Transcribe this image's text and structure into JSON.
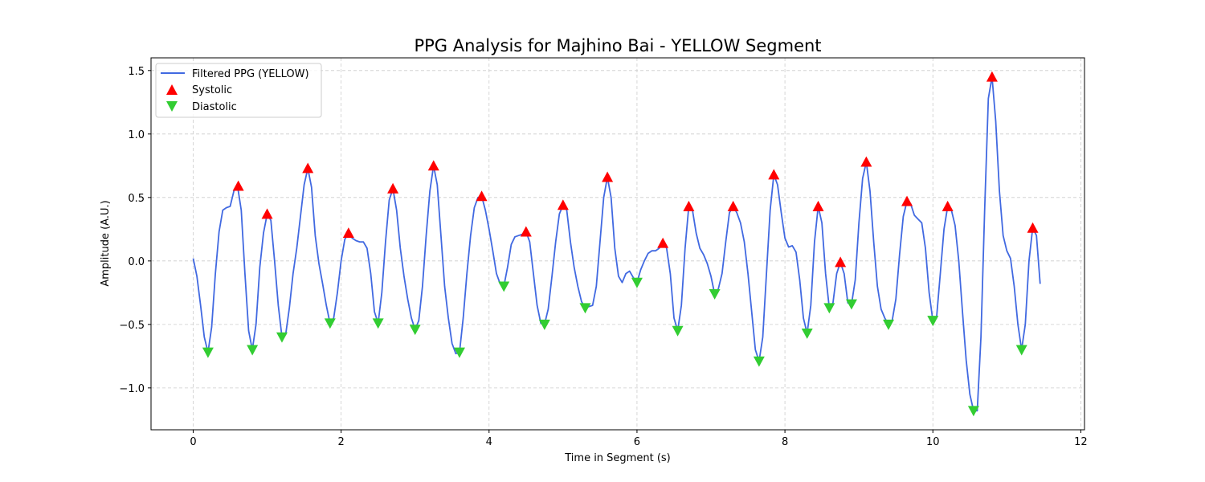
{
  "chart_data": {
    "type": "line",
    "title": "PPG Analysis for Majhino Bai - YELLOW Segment",
    "xlabel": "Time in Segment (s)",
    "ylabel": "Amplitude (A.U.)",
    "xlim": [
      -0.57,
      12.05
    ],
    "ylim": [
      -1.33,
      1.6
    ],
    "xticks": [
      0,
      2,
      4,
      6,
      8,
      10,
      12
    ],
    "yticks": [
      -1.0,
      -0.5,
      0.0,
      0.5,
      1.0,
      1.5
    ],
    "xtick_labels": [
      "0",
      "2",
      "4",
      "6",
      "8",
      "10",
      "12"
    ],
    "ytick_labels": [
      "−1.0",
      "−0.5",
      "0.0",
      "0.5",
      "1.0",
      "1.5"
    ],
    "grid": true,
    "legend_position": "top-left",
    "colors": {
      "line": "#4169e1",
      "systolic": "#ff0000",
      "diastolic": "#32cd32",
      "grid": "#cccccc"
    },
    "series": [
      {
        "name": "Filtered PPG (YELLOW)",
        "kind": "line",
        "points": [
          [
            0.0,
            0.02
          ],
          [
            0.05,
            -0.12
          ],
          [
            0.1,
            -0.35
          ],
          [
            0.15,
            -0.6
          ],
          [
            0.2,
            -0.72
          ],
          [
            0.25,
            -0.52
          ],
          [
            0.3,
            -0.1
          ],
          [
            0.35,
            0.23
          ],
          [
            0.4,
            0.4
          ],
          [
            0.45,
            0.42
          ],
          [
            0.5,
            0.43
          ],
          [
            0.55,
            0.55
          ],
          [
            0.6,
            0.59
          ],
          [
            0.65,
            0.4
          ],
          [
            0.7,
            -0.1
          ],
          [
            0.75,
            -0.55
          ],
          [
            0.8,
            -0.7
          ],
          [
            0.85,
            -0.5
          ],
          [
            0.9,
            -0.05
          ],
          [
            0.95,
            0.22
          ],
          [
            1.0,
            0.37
          ],
          [
            1.05,
            0.32
          ],
          [
            1.1,
            0.0
          ],
          [
            1.15,
            -0.35
          ],
          [
            1.2,
            -0.6
          ],
          [
            1.25,
            -0.58
          ],
          [
            1.3,
            -0.37
          ],
          [
            1.35,
            -0.1
          ],
          [
            1.4,
            0.1
          ],
          [
            1.45,
            0.35
          ],
          [
            1.5,
            0.6
          ],
          [
            1.55,
            0.73
          ],
          [
            1.6,
            0.58
          ],
          [
            1.65,
            0.2
          ],
          [
            1.7,
            -0.02
          ],
          [
            1.75,
            -0.18
          ],
          [
            1.8,
            -0.35
          ],
          [
            1.85,
            -0.49
          ],
          [
            1.9,
            -0.45
          ],
          [
            1.95,
            -0.25
          ],
          [
            2.0,
            0.0
          ],
          [
            2.05,
            0.17
          ],
          [
            2.1,
            0.22
          ],
          [
            2.15,
            0.18
          ],
          [
            2.2,
            0.16
          ],
          [
            2.25,
            0.15
          ],
          [
            2.3,
            0.15
          ],
          [
            2.35,
            0.1
          ],
          [
            2.4,
            -0.1
          ],
          [
            2.45,
            -0.4
          ],
          [
            2.5,
            -0.49
          ],
          [
            2.55,
            -0.25
          ],
          [
            2.6,
            0.15
          ],
          [
            2.65,
            0.48
          ],
          [
            2.7,
            0.57
          ],
          [
            2.75,
            0.4
          ],
          [
            2.8,
            0.1
          ],
          [
            2.85,
            -0.12
          ],
          [
            2.9,
            -0.3
          ],
          [
            2.95,
            -0.45
          ],
          [
            3.0,
            -0.54
          ],
          [
            3.05,
            -0.47
          ],
          [
            3.1,
            -0.2
          ],
          [
            3.15,
            0.2
          ],
          [
            3.2,
            0.55
          ],
          [
            3.25,
            0.75
          ],
          [
            3.3,
            0.6
          ],
          [
            3.35,
            0.2
          ],
          [
            3.4,
            -0.2
          ],
          [
            3.45,
            -0.45
          ],
          [
            3.5,
            -0.65
          ],
          [
            3.55,
            -0.73
          ],
          [
            3.6,
            -0.72
          ],
          [
            3.65,
            -0.45
          ],
          [
            3.7,
            -0.1
          ],
          [
            3.75,
            0.2
          ],
          [
            3.8,
            0.42
          ],
          [
            3.85,
            0.5
          ],
          [
            3.9,
            0.51
          ],
          [
            3.95,
            0.4
          ],
          [
            4.0,
            0.25
          ],
          [
            4.05,
            0.08
          ],
          [
            4.1,
            -0.1
          ],
          [
            4.15,
            -0.18
          ],
          [
            4.2,
            -0.2
          ],
          [
            4.25,
            -0.05
          ],
          [
            4.3,
            0.13
          ],
          [
            4.35,
            0.19
          ],
          [
            4.4,
            0.2
          ],
          [
            4.45,
            0.21
          ],
          [
            4.5,
            0.23
          ],
          [
            4.55,
            0.15
          ],
          [
            4.6,
            -0.1
          ],
          [
            4.65,
            -0.35
          ],
          [
            4.7,
            -0.49
          ],
          [
            4.75,
            -0.5
          ],
          [
            4.8,
            -0.38
          ],
          [
            4.85,
            -0.12
          ],
          [
            4.9,
            0.15
          ],
          [
            4.95,
            0.37
          ],
          [
            5.0,
            0.44
          ],
          [
            5.05,
            0.4
          ],
          [
            5.1,
            0.15
          ],
          [
            5.15,
            -0.05
          ],
          [
            5.2,
            -0.2
          ],
          [
            5.25,
            -0.32
          ],
          [
            5.3,
            -0.37
          ],
          [
            5.35,
            -0.36
          ],
          [
            5.4,
            -0.35
          ],
          [
            5.45,
            -0.2
          ],
          [
            5.5,
            0.15
          ],
          [
            5.55,
            0.5
          ],
          [
            5.6,
            0.66
          ],
          [
            5.65,
            0.5
          ],
          [
            5.7,
            0.1
          ],
          [
            5.75,
            -0.12
          ],
          [
            5.8,
            -0.17
          ],
          [
            5.85,
            -0.1
          ],
          [
            5.9,
            -0.08
          ],
          [
            5.95,
            -0.13
          ],
          [
            6.0,
            -0.17
          ],
          [
            6.05,
            -0.07
          ],
          [
            6.1,
            0.0
          ],
          [
            6.15,
            0.06
          ],
          [
            6.2,
            0.08
          ],
          [
            6.25,
            0.08
          ],
          [
            6.3,
            0.1
          ],
          [
            6.35,
            0.14
          ],
          [
            6.4,
            0.1
          ],
          [
            6.45,
            -0.1
          ],
          [
            6.5,
            -0.45
          ],
          [
            6.55,
            -0.55
          ],
          [
            6.6,
            -0.35
          ],
          [
            6.65,
            0.1
          ],
          [
            6.7,
            0.43
          ],
          [
            6.75,
            0.4
          ],
          [
            6.8,
            0.22
          ],
          [
            6.85,
            0.1
          ],
          [
            6.9,
            0.05
          ],
          [
            6.95,
            -0.02
          ],
          [
            7.0,
            -0.12
          ],
          [
            7.05,
            -0.26
          ],
          [
            7.1,
            -0.22
          ],
          [
            7.15,
            -0.1
          ],
          [
            7.2,
            0.15
          ],
          [
            7.25,
            0.38
          ],
          [
            7.3,
            0.43
          ],
          [
            7.35,
            0.38
          ],
          [
            7.4,
            0.3
          ],
          [
            7.45,
            0.15
          ],
          [
            7.5,
            -0.1
          ],
          [
            7.55,
            -0.4
          ],
          [
            7.6,
            -0.7
          ],
          [
            7.65,
            -0.79
          ],
          [
            7.7,
            -0.6
          ],
          [
            7.75,
            -0.1
          ],
          [
            7.8,
            0.4
          ],
          [
            7.85,
            0.68
          ],
          [
            7.9,
            0.6
          ],
          [
            7.95,
            0.38
          ],
          [
            8.0,
            0.18
          ],
          [
            8.05,
            0.11
          ],
          [
            8.1,
            0.12
          ],
          [
            8.15,
            0.07
          ],
          [
            8.2,
            -0.15
          ],
          [
            8.25,
            -0.45
          ],
          [
            8.3,
            -0.57
          ],
          [
            8.35,
            -0.35
          ],
          [
            8.4,
            0.15
          ],
          [
            8.45,
            0.43
          ],
          [
            8.5,
            0.3
          ],
          [
            8.55,
            -0.1
          ],
          [
            8.6,
            -0.37
          ],
          [
            8.65,
            -0.33
          ],
          [
            8.7,
            -0.1
          ],
          [
            8.75,
            -0.01
          ],
          [
            8.8,
            -0.1
          ],
          [
            8.85,
            -0.33
          ],
          [
            8.9,
            -0.34
          ],
          [
            8.95,
            -0.15
          ],
          [
            9.0,
            0.3
          ],
          [
            9.05,
            0.65
          ],
          [
            9.1,
            0.78
          ],
          [
            9.15,
            0.55
          ],
          [
            9.2,
            0.15
          ],
          [
            9.25,
            -0.2
          ],
          [
            9.3,
            -0.38
          ],
          [
            9.35,
            -0.45
          ],
          [
            9.4,
            -0.5
          ],
          [
            9.45,
            -0.47
          ],
          [
            9.5,
            -0.3
          ],
          [
            9.55,
            0.05
          ],
          [
            9.6,
            0.35
          ],
          [
            9.65,
            0.47
          ],
          [
            9.7,
            0.45
          ],
          [
            9.75,
            0.36
          ],
          [
            9.8,
            0.33
          ],
          [
            9.85,
            0.3
          ],
          [
            9.9,
            0.1
          ],
          [
            9.95,
            -0.25
          ],
          [
            10.0,
            -0.47
          ],
          [
            10.05,
            -0.45
          ],
          [
            10.1,
            -0.1
          ],
          [
            10.15,
            0.25
          ],
          [
            10.2,
            0.43
          ],
          [
            10.25,
            0.4
          ],
          [
            10.3,
            0.28
          ],
          [
            10.35,
            0.0
          ],
          [
            10.4,
            -0.4
          ],
          [
            10.45,
            -0.78
          ],
          [
            10.5,
            -1.05
          ],
          [
            10.55,
            -1.18
          ],
          [
            10.6,
            -1.18
          ],
          [
            10.65,
            -0.6
          ],
          [
            10.7,
            0.4
          ],
          [
            10.75,
            1.28
          ],
          [
            10.8,
            1.45
          ],
          [
            10.85,
            1.1
          ],
          [
            10.9,
            0.55
          ],
          [
            10.95,
            0.2
          ],
          [
            11.0,
            0.08
          ],
          [
            11.05,
            0.02
          ],
          [
            11.1,
            -0.2
          ],
          [
            11.15,
            -0.5
          ],
          [
            11.2,
            -0.7
          ],
          [
            11.25,
            -0.5
          ],
          [
            11.3,
            0.0
          ],
          [
            11.35,
            0.26
          ],
          [
            11.4,
            0.2
          ],
          [
            11.45,
            -0.18
          ]
        ]
      },
      {
        "name": "Systolic",
        "kind": "marker-up",
        "points": [
          [
            0.61,
            0.59
          ],
          [
            1.0,
            0.37
          ],
          [
            1.55,
            0.73
          ],
          [
            2.1,
            0.22
          ],
          [
            2.7,
            0.57
          ],
          [
            3.25,
            0.75
          ],
          [
            3.9,
            0.51
          ],
          [
            4.5,
            0.23
          ],
          [
            5.0,
            0.44
          ],
          [
            5.6,
            0.66
          ],
          [
            6.35,
            0.14
          ],
          [
            6.7,
            0.43
          ],
          [
            7.3,
            0.43
          ],
          [
            7.85,
            0.68
          ],
          [
            8.45,
            0.43
          ],
          [
            8.75,
            -0.01
          ],
          [
            9.1,
            0.78
          ],
          [
            9.65,
            0.47
          ],
          [
            10.2,
            0.43
          ],
          [
            10.8,
            1.45
          ],
          [
            11.35,
            0.26
          ]
        ]
      },
      {
        "name": "Diastolic",
        "kind": "marker-down",
        "points": [
          [
            0.2,
            -0.72
          ],
          [
            0.8,
            -0.7
          ],
          [
            1.2,
            -0.6
          ],
          [
            1.85,
            -0.49
          ],
          [
            2.5,
            -0.49
          ],
          [
            3.0,
            -0.54
          ],
          [
            3.6,
            -0.72
          ],
          [
            4.2,
            -0.2
          ],
          [
            4.75,
            -0.5
          ],
          [
            5.3,
            -0.37
          ],
          [
            6.0,
            -0.17
          ],
          [
            6.55,
            -0.55
          ],
          [
            7.05,
            -0.26
          ],
          [
            7.65,
            -0.79
          ],
          [
            8.3,
            -0.57
          ],
          [
            8.6,
            -0.37
          ],
          [
            8.9,
            -0.34
          ],
          [
            9.4,
            -0.5
          ],
          [
            10.0,
            -0.47
          ],
          [
            10.55,
            -1.18
          ],
          [
            11.2,
            -0.7
          ]
        ]
      }
    ]
  }
}
